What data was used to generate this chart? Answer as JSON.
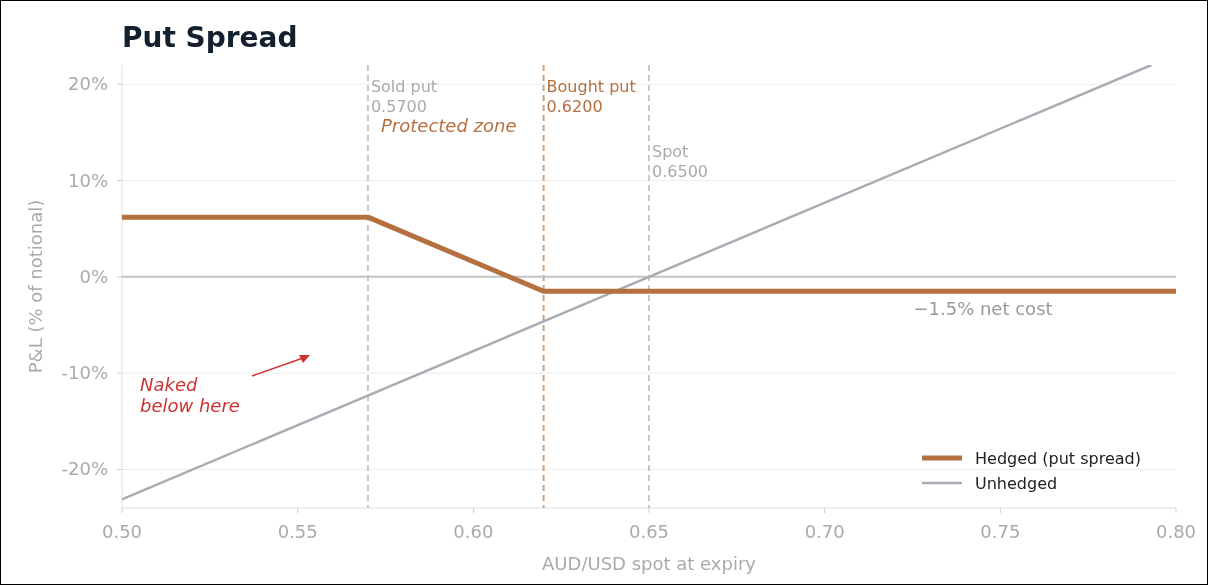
{
  "chart_data": {
    "type": "line",
    "title": "Put Spread",
    "xlabel": "AUD/USD spot at expiry",
    "ylabel": "P&L (% of notional)",
    "series": [
      {
        "name": "Hedged (put spread)",
        "color": "#b5703f",
        "x": [
          0.5,
          0.57,
          0.62,
          0.8
        ],
        "values": [
          6.2,
          6.2,
          -1.5,
          -1.5
        ]
      },
      {
        "name": "Unhedged",
        "color": "#a9adb3",
        "x": [
          0.5,
          0.65,
          0.793
        ],
        "values": [
          -23.1,
          0,
          22
        ]
      }
    ],
    "xlim": [
      0.5,
      0.8
    ],
    "ylim": [
      -24,
      22
    ],
    "xticks": [
      {
        "value": 0.5,
        "label": "0.50"
      },
      {
        "value": 0.55,
        "label": "0.55"
      },
      {
        "value": 0.6,
        "label": "0.60"
      },
      {
        "value": 0.65,
        "label": "0.65"
      },
      {
        "value": 0.7,
        "label": "0.70"
      },
      {
        "value": 0.75,
        "label": "0.75"
      },
      {
        "value": 0.8,
        "label": "0.80"
      }
    ],
    "yticks": [
      {
        "value": -20,
        "label": "-20%"
      },
      {
        "value": -10,
        "label": "-10%"
      },
      {
        "value": 0,
        "label": "0%"
      },
      {
        "value": 10,
        "label": "10%"
      },
      {
        "value": 20,
        "label": "20%"
      }
    ],
    "ref_lines": [
      {
        "axis": "x",
        "value": 0.57,
        "label": "Sold put\n0.5700",
        "color": "#c8c8c8",
        "line_style": "dashed"
      },
      {
        "axis": "x",
        "value": 0.62,
        "label": "Bought put\n0.6200",
        "color": "#d4a07a",
        "line_style": "dashed"
      },
      {
        "axis": "x",
        "value": 0.65,
        "label": "Spot\n0.6500",
        "color": "#c8c8c8",
        "line_style": "dashed"
      },
      {
        "axis": "y",
        "value": 0,
        "color": "#c4c4c4",
        "line_style": "solid"
      }
    ],
    "annotations": [
      "Protected zone",
      "−1.5% net cost",
      "Naked\nbelow here"
    ],
    "grid": "y",
    "legend": "bottom right",
    "line_style": "solid",
    "marker": "none"
  }
}
